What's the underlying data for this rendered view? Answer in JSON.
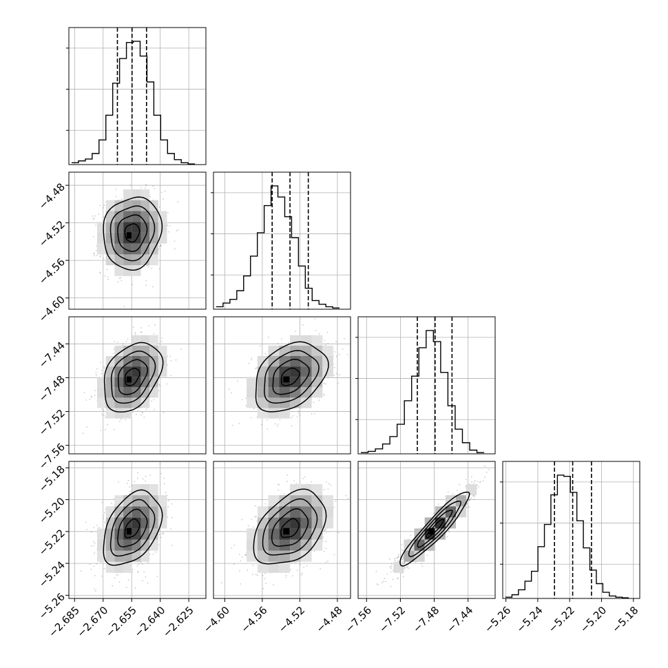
{
  "chart_data": {
    "type": "corner",
    "description": "Corner plot of 4 parameters: 1-D marginal histograms on the diagonal with dashed quantile lines, 2-D density panels (scatter points, shaded 2-D histogram, contours) below the diagonal.",
    "quantiles": [
      0.16,
      0.5,
      0.84
    ],
    "parameters": [
      {
        "range": [
          -2.688,
          -2.616
        ],
        "ticks": [
          -2.685,
          -2.67,
          -2.655,
          -2.64,
          -2.625
        ],
        "tick_labels": [
          "−2.685",
          "−2.670",
          "−2.655",
          "−2.640",
          "−2.625"
        ],
        "quantile_values": [
          -2.6625,
          -2.6548,
          -2.6472
        ],
        "histogram": [
          0.015,
          0.03,
          0.045,
          0.09,
          0.2,
          0.4,
          0.66,
          0.86,
          0.99,
          1.0,
          0.88,
          0.67,
          0.4,
          0.2,
          0.09,
          0.04,
          0.015,
          0.005
        ]
      },
      {
        "range": [
          -4.612,
          -4.466
        ],
        "ticks": [
          -4.6,
          -4.56,
          -4.52,
          -4.48
        ],
        "tick_labels": [
          "−4.60",
          "−4.56",
          "−4.52",
          "−4.48"
        ],
        "quantile_values": [
          -4.5495,
          -4.5305,
          -4.511
        ],
        "histogram": [
          0.02,
          0.05,
          0.08,
          0.15,
          0.27,
          0.43,
          0.62,
          0.84,
          1.0,
          0.91,
          0.75,
          0.58,
          0.35,
          0.17,
          0.07,
          0.04,
          0.02,
          0.01
        ]
      },
      {
        "range": [
          -7.57,
          -7.408
        ],
        "ticks": [
          -7.56,
          -7.52,
          -7.48,
          -7.44
        ],
        "tick_labels": [
          "−7.56",
          "−7.52",
          "−7.48",
          "−7.44"
        ],
        "quantile_values": [
          -7.5,
          -7.479,
          -7.459
        ],
        "histogram": [
          0.01,
          0.02,
          0.04,
          0.08,
          0.14,
          0.24,
          0.43,
          0.63,
          0.86,
          1.0,
          0.91,
          0.66,
          0.39,
          0.2,
          0.09,
          0.03,
          0.01
        ]
      },
      {
        "range": [
          -5.262,
          -5.176
        ],
        "ticks": [
          -5.26,
          -5.24,
          -5.22,
          -5.2,
          -5.18
        ],
        "tick_labels": [
          "−5.26",
          "−5.24",
          "−5.22",
          "−5.20",
          "−5.18"
        ],
        "quantile_values": [
          -5.2295,
          -5.2181,
          -5.2063
        ],
        "histogram": [
          0.01,
          0.03,
          0.07,
          0.14,
          0.22,
          0.42,
          0.6,
          0.84,
          1.0,
          0.99,
          0.86,
          0.63,
          0.41,
          0.23,
          0.12,
          0.05,
          0.02,
          0.01,
          0.005
        ]
      }
    ],
    "pairs": [
      {
        "x": 0,
        "y": 1,
        "correlation": 0.1
      },
      {
        "x": 0,
        "y": 2,
        "correlation": 0.35
      },
      {
        "x": 1,
        "y": 2,
        "correlation": 0.35
      },
      {
        "x": 0,
        "y": 3,
        "correlation": 0.4
      },
      {
        "x": 1,
        "y": 3,
        "correlation": 0.4
      },
      {
        "x": 2,
        "y": 3,
        "correlation": 0.93
      }
    ]
  }
}
